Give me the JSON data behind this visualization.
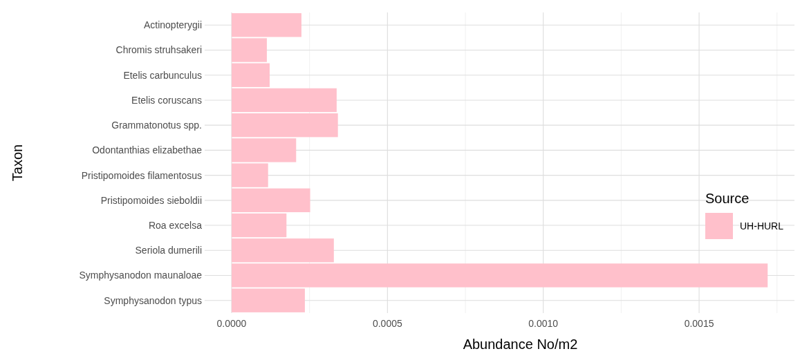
{
  "chart_data": {
    "type": "bar",
    "orientation": "horizontal",
    "xlabel": "Abundance No/m2",
    "ylabel": "Taxon",
    "legend_title": "Source",
    "categories": [
      "Actinopterygii",
      "Chromis struhsakeri",
      "Etelis carbunculus",
      "Etelis coruscans",
      "Grammatonotus spp.",
      "Odontanthias elizabethae",
      "Pristipomoides filamentosus",
      "Pristipomoides sieboldii",
      "Roa excelsa",
      "Seriola dumerili",
      "Symphysanodon maunaloae",
      "Symphysanodon typus"
    ],
    "series": [
      {
        "name": "UH-HURL",
        "color": "#ffc0cb",
        "values": [
          0.000224,
          0.000113,
          0.000122,
          0.000337,
          0.000341,
          0.000207,
          0.000117,
          0.000252,
          0.000176,
          0.000328,
          0.00172,
          0.000235
        ]
      }
    ],
    "xlim": [
      -8.65e-05,
      0.001806
    ],
    "xticks": [
      {
        "value": 0,
        "label": "0.0000"
      },
      {
        "value": 0.0005,
        "label": "0.0005"
      },
      {
        "value": 0.001,
        "label": "0.0010"
      },
      {
        "value": 0.0015,
        "label": "0.0015"
      }
    ],
    "grid": true,
    "legend": "right"
  }
}
